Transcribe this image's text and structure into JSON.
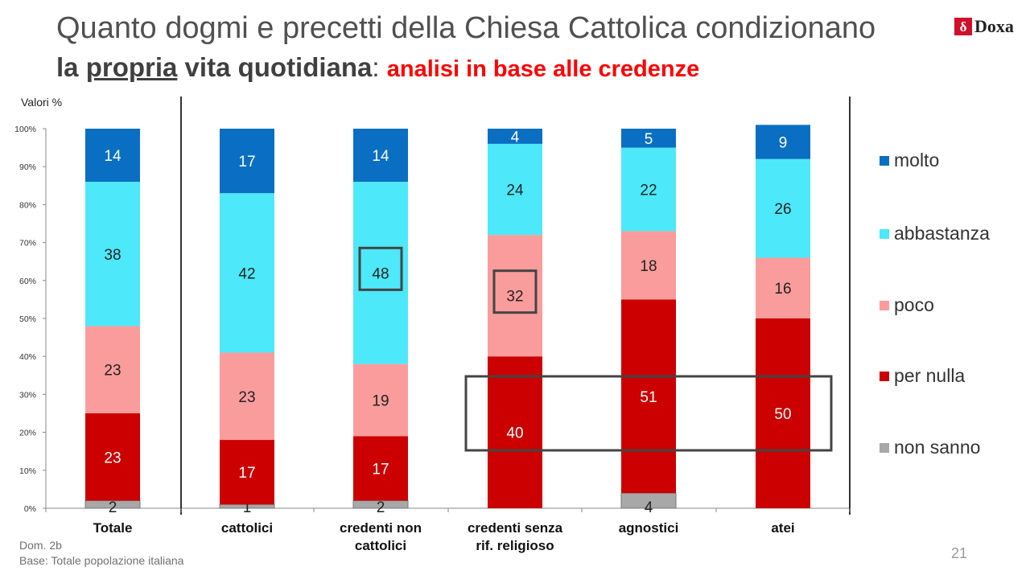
{
  "title": {
    "line1": "Quanto dogmi e precetti della Chiesa Cattolica condizionano",
    "line2_part1": "la ",
    "line2_underlined": "propria",
    "line2_part2": " vita quotidiana",
    "line2_colon": ": ",
    "line2_red": "analisi in base alle credenze"
  },
  "logo": {
    "mark": "δ",
    "text": "Doxa"
  },
  "unit_label": "Valori %",
  "footnote": {
    "question": "Dom. 2b",
    "base": "Base: Totale popolazione italiana"
  },
  "page_number": "21",
  "colors": {
    "molto": "#0a6fc2",
    "abbastanza": "#4de8fa",
    "poco": "#fa9c9c",
    "per_nulla": "#cc0000",
    "non_sanno": "#a8a8a8"
  },
  "chart_data": {
    "type": "bar",
    "stacked": true,
    "orientation": "vertical",
    "ylim": [
      0,
      100
    ],
    "yticks": [
      "0%",
      "10%",
      "20%",
      "30%",
      "40%",
      "50%",
      "60%",
      "70%",
      "80%",
      "90%",
      "100%"
    ],
    "ylabel": "Valori %",
    "grid": false,
    "legend_position": "right",
    "categories": [
      [
        "Totale"
      ],
      [
        "cattolici"
      ],
      [
        "credenti non",
        "cattolici"
      ],
      [
        "credenti senza",
        "rif. religioso"
      ],
      [
        "agnostici"
      ],
      [
        "atei"
      ]
    ],
    "series": [
      {
        "name": "non sanno",
        "key": "non_sanno",
        "values": [
          2,
          1,
          2,
          0,
          4,
          0
        ],
        "labels": [
          "2",
          "1",
          "2",
          "",
          "4",
          ""
        ]
      },
      {
        "name": "per nulla",
        "key": "per_nulla",
        "values": [
          23,
          17,
          17,
          40,
          51,
          50
        ],
        "labels": [
          "23",
          "17",
          "17",
          "40",
          "51",
          "50"
        ]
      },
      {
        "name": "poco",
        "key": "poco",
        "values": [
          23,
          23,
          19,
          32,
          18,
          16
        ],
        "labels": [
          "23",
          "23",
          "19",
          "32",
          "18",
          "16"
        ]
      },
      {
        "name": "abbastanza",
        "key": "abbastanza",
        "values": [
          38,
          42,
          48,
          24,
          22,
          26
        ],
        "labels": [
          "38",
          "42",
          "48",
          "24",
          "22",
          "26"
        ]
      },
      {
        "name": "molto",
        "key": "molto",
        "values": [
          14,
          17,
          14,
          4,
          5,
          9
        ],
        "labels": [
          "14",
          "17",
          "14",
          "4",
          "5",
          "9"
        ]
      }
    ],
    "legend_order": [
      "molto",
      "abbastanza",
      "poco",
      "per nulla",
      "non sanno"
    ],
    "highlights": [
      {
        "category": 2,
        "series": "abbastanza"
      },
      {
        "category": 3,
        "series": "poco"
      },
      {
        "categories": [
          3,
          5
        ],
        "series": "per nulla"
      }
    ]
  }
}
